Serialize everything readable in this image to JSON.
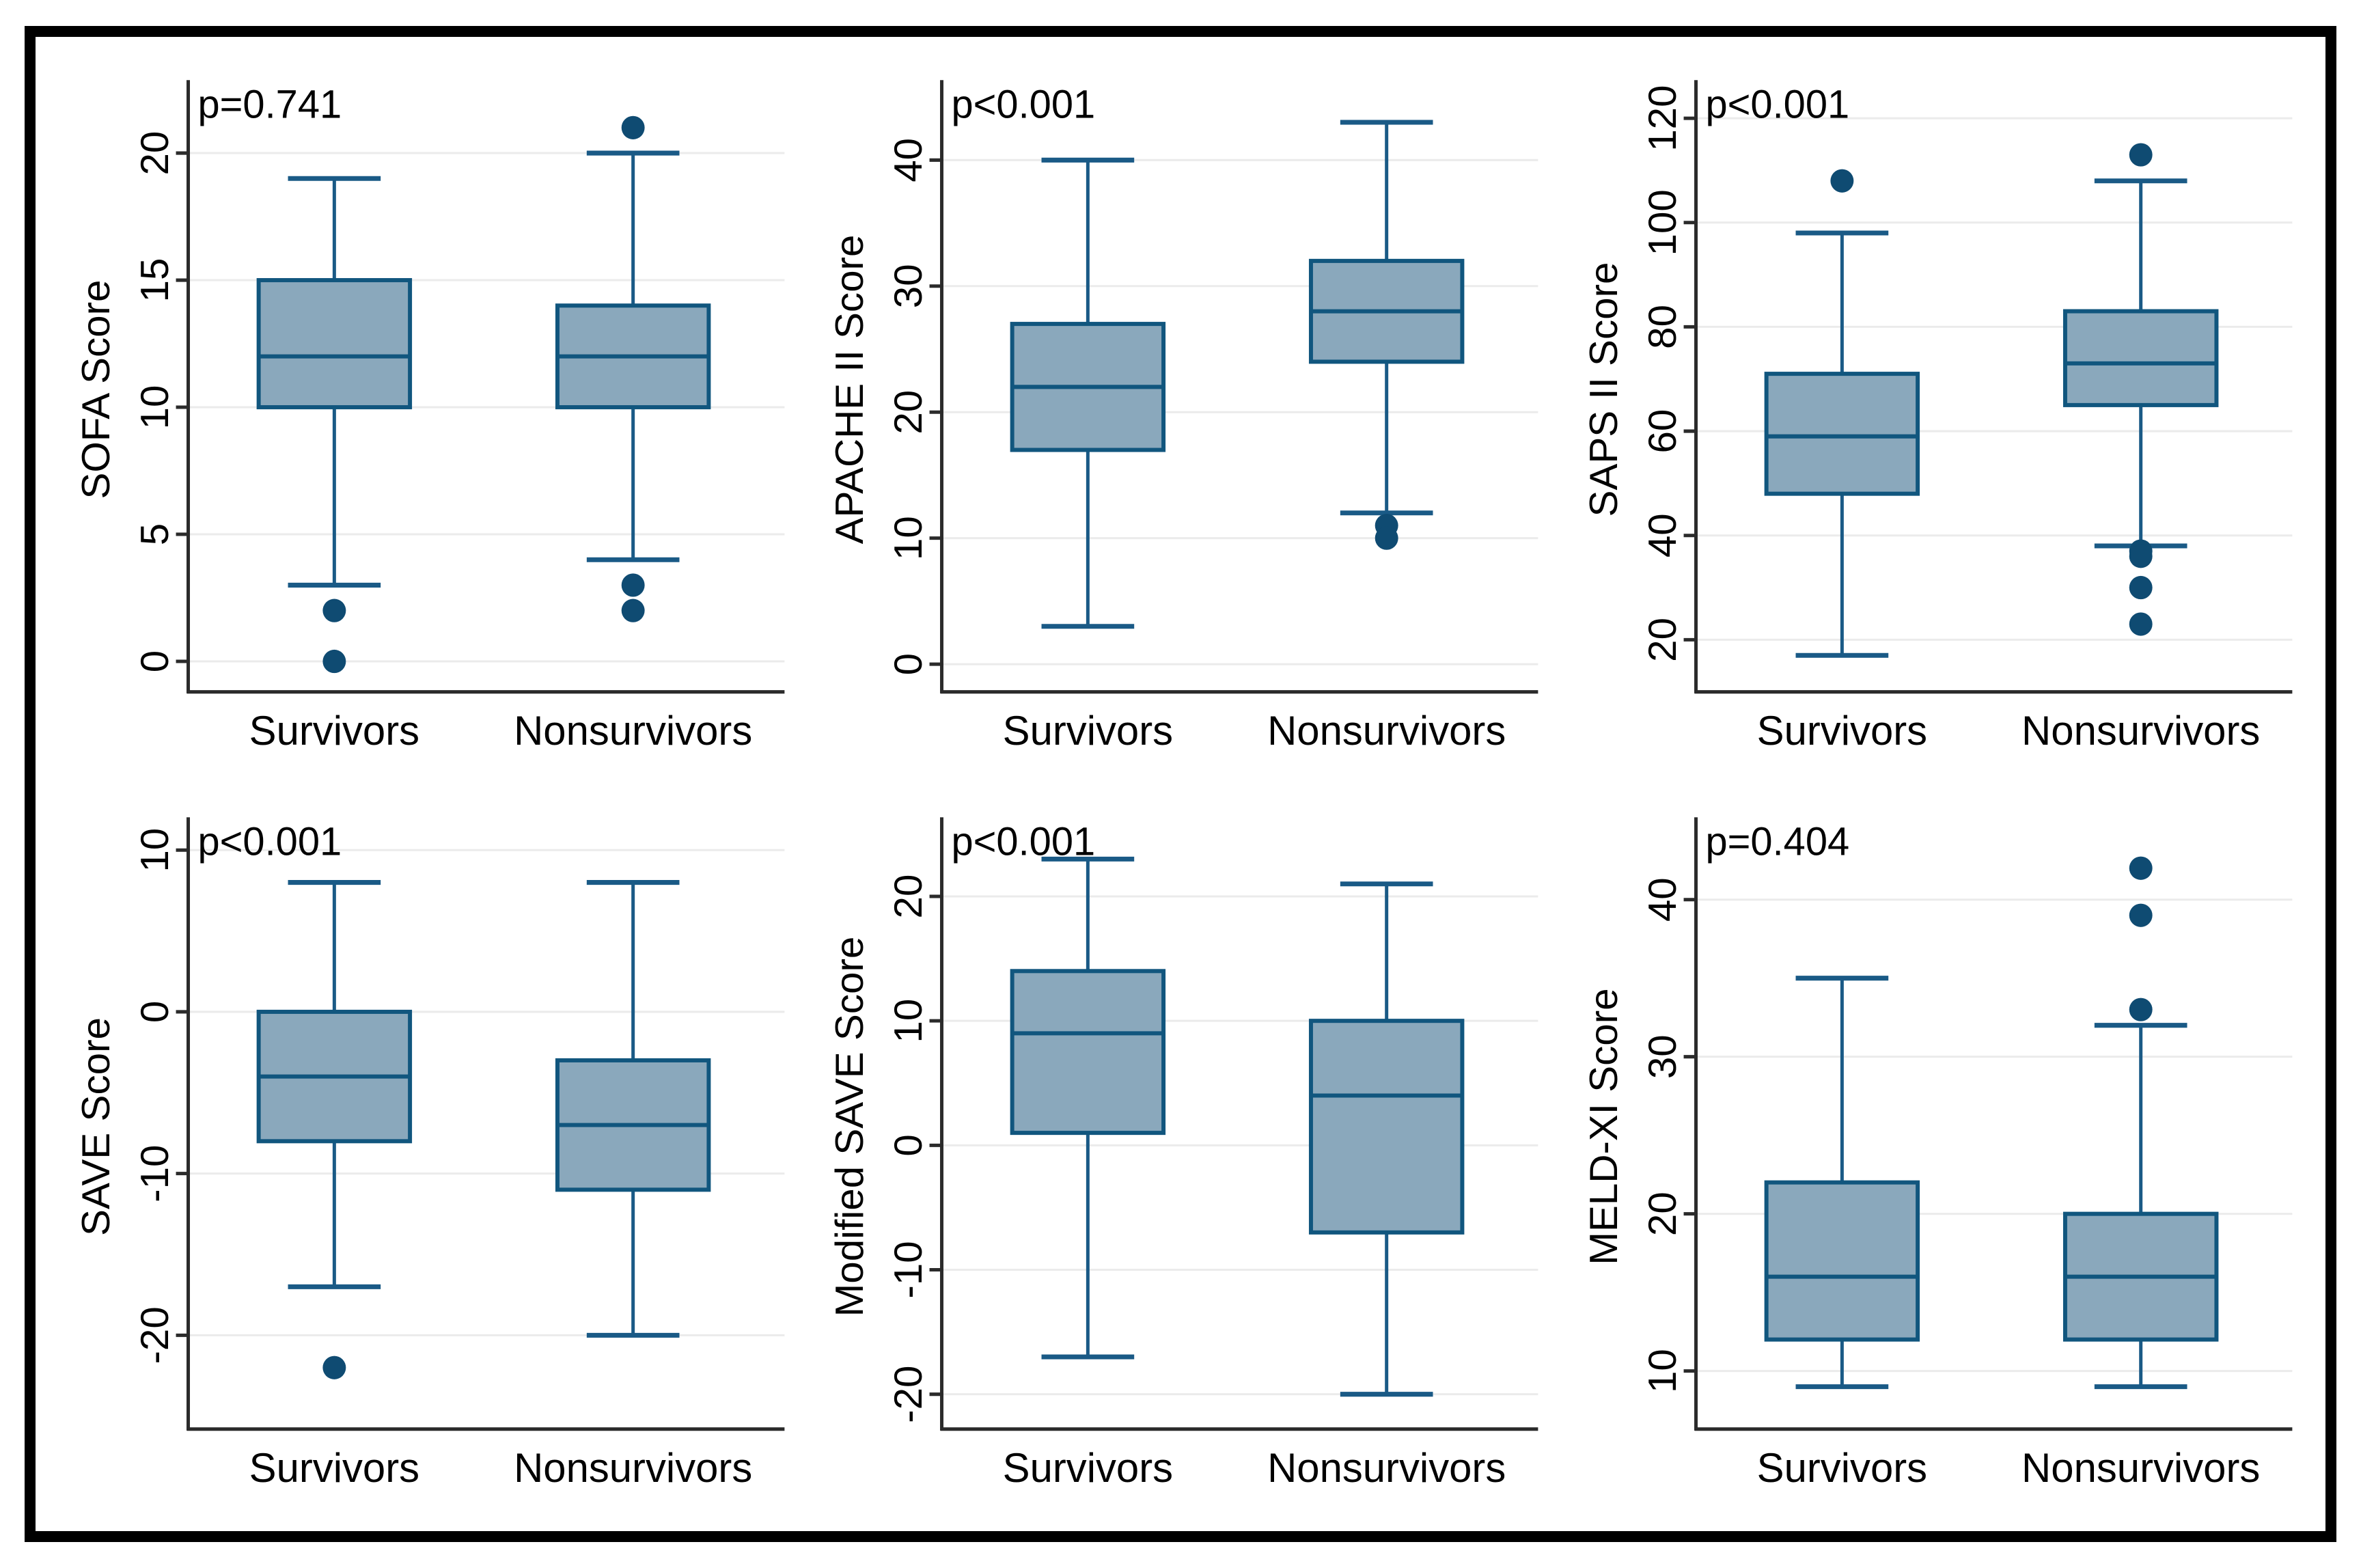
{
  "figure": {
    "background": "#ffffff",
    "frame_color": "#000000"
  },
  "style": {
    "box_fill": "#8aa8bc",
    "box_line": "#11567e",
    "whisker_line": "#1a5a86",
    "outlier_dot": "#0f4b72",
    "grid_color": "#ebebeb",
    "axis_color": "#2b2b2b",
    "text_color": "#000000"
  },
  "chart_data": [
    {
      "type": "box",
      "key": "sofa",
      "p_label": "p=0.741",
      "ylabel": "SOFA Score",
      "yticks": [
        0,
        5,
        10,
        15,
        20
      ],
      "ylim": [
        -1.2,
        22.6
      ],
      "grid": true,
      "legend": false,
      "categories": [
        "Survivors",
        "Nonsurvivors"
      ],
      "series": [
        {
          "name": "Survivors",
          "whisker_low": 3,
          "q1": 10,
          "median": 12,
          "q3": 15,
          "whisker_high": 19,
          "outliers": [
            2,
            0
          ]
        },
        {
          "name": "Nonsurvivors",
          "whisker_low": 4,
          "q1": 10,
          "median": 12,
          "q3": 14,
          "whisker_high": 20,
          "outliers": [
            21,
            3,
            2
          ]
        }
      ]
    },
    {
      "type": "box",
      "key": "apache2",
      "p_label": "p<0.001",
      "ylabel": "APACHE II Score",
      "yticks": [
        0,
        10,
        20,
        30,
        40
      ],
      "ylim": [
        -2.2,
        45.8
      ],
      "grid": true,
      "legend": false,
      "categories": [
        "Survivors",
        "Nonsurvivors"
      ],
      "series": [
        {
          "name": "Survivors",
          "whisker_low": 3,
          "q1": 17,
          "median": 22,
          "q3": 27,
          "whisker_high": 40,
          "outliers": []
        },
        {
          "name": "Nonsurvivors",
          "whisker_low": 12,
          "q1": 24,
          "median": 28,
          "q3": 32,
          "whisker_high": 43,
          "outliers": [
            11,
            10
          ]
        }
      ]
    },
    {
      "type": "box",
      "key": "saps2",
      "p_label": "p<0.001",
      "ylabel": "SAPS II Score",
      "yticks": [
        20,
        40,
        60,
        80,
        100,
        120
      ],
      "ylim": [
        10,
        126
      ],
      "grid": true,
      "legend": false,
      "categories": [
        "Survivors",
        "Nonsurvivors"
      ],
      "series": [
        {
          "name": "Survivors",
          "whisker_low": 17,
          "q1": 48,
          "median": 59,
          "q3": 71,
          "whisker_high": 98,
          "outliers": [
            108
          ]
        },
        {
          "name": "Nonsurvivors",
          "whisker_low": 38,
          "q1": 65,
          "median": 73,
          "q3": 83,
          "whisker_high": 108,
          "outliers": [
            113,
            37,
            36,
            30,
            23
          ]
        }
      ]
    },
    {
      "type": "box",
      "key": "save",
      "p_label": "p<0.001",
      "ylabel": "SAVE Score",
      "yticks": [
        -20,
        -10,
        0,
        10
      ],
      "ylim": [
        -25.8,
        11.6
      ],
      "grid": true,
      "legend": false,
      "categories": [
        "Survivors",
        "Nonsurvivors"
      ],
      "series": [
        {
          "name": "Survivors",
          "whisker_low": -17,
          "q1": -8,
          "median": -4,
          "q3": 0,
          "whisker_high": 8,
          "outliers": [
            -22
          ]
        },
        {
          "name": "Nonsurvivors",
          "whisker_low": -20,
          "q1": -11,
          "median": -7,
          "q3": -3,
          "whisker_high": 8,
          "outliers": []
        }
      ]
    },
    {
      "type": "box",
      "key": "msave",
      "p_label": "p<0.001",
      "ylabel": "Modified SAVE Score",
      "yticks": [
        -20,
        -10,
        0,
        10,
        20
      ],
      "ylim": [
        -22.8,
        25.8
      ],
      "grid": true,
      "legend": false,
      "categories": [
        "Survivors",
        "Nonsurvivors"
      ],
      "series": [
        {
          "name": "Survivors",
          "whisker_low": -17,
          "q1": 1,
          "median": 9,
          "q3": 14,
          "whisker_high": 23,
          "outliers": []
        },
        {
          "name": "Nonsurvivors",
          "whisker_low": -20,
          "q1": -7,
          "median": 4,
          "q3": 10,
          "whisker_high": 21,
          "outliers": []
        }
      ]
    },
    {
      "type": "box",
      "key": "meldxi",
      "p_label": "p=0.404",
      "ylabel": "MELD-XI Score",
      "yticks": [
        10,
        20,
        30,
        40
      ],
      "ylim": [
        6.3,
        44.8
      ],
      "grid": true,
      "legend": false,
      "categories": [
        "Survivors",
        "Nonsurvivors"
      ],
      "series": [
        {
          "name": "Survivors",
          "whisker_low": 9,
          "q1": 12,
          "median": 16,
          "q3": 22,
          "whisker_high": 35,
          "outliers": []
        },
        {
          "name": "Nonsurvivors",
          "whisker_low": 9,
          "q1": 12,
          "median": 16,
          "q3": 20,
          "whisker_high": 32,
          "outliers": [
            42,
            39,
            33
          ]
        }
      ]
    }
  ]
}
